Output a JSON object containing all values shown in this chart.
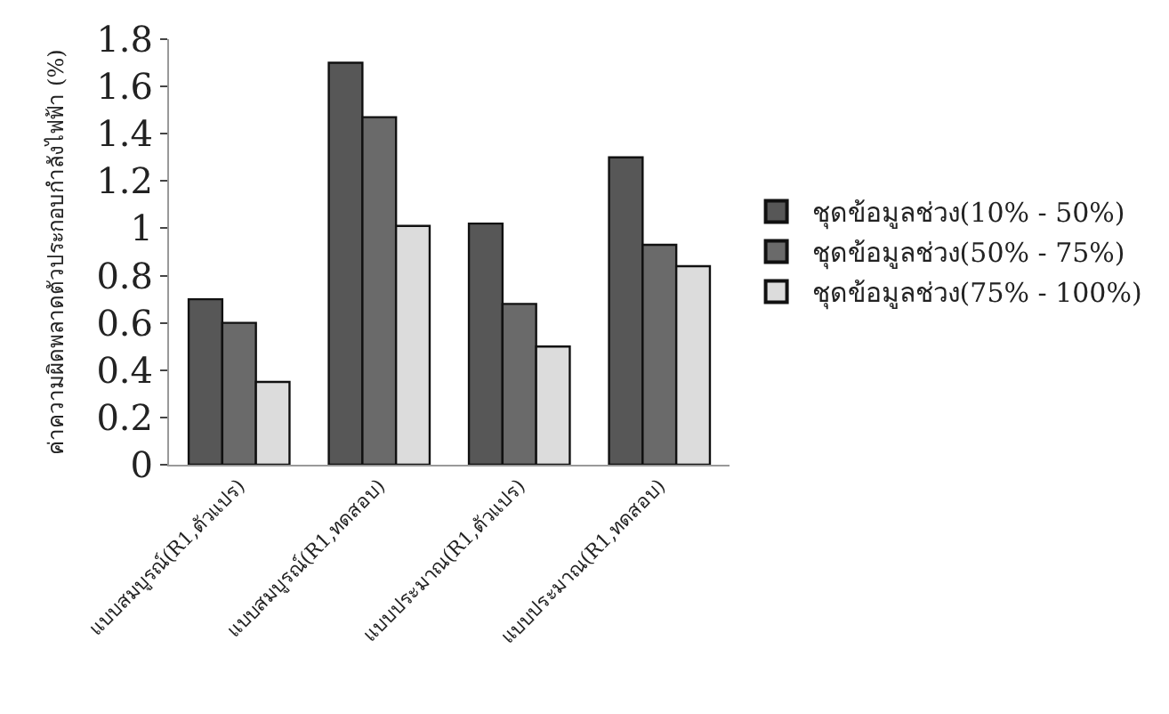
{
  "chart_data": {
    "type": "bar",
    "ylabel": "ค่าความผิดพลาดตัวประกอบกำลังไฟฟ้า (%)",
    "categories": [
      "แบบสมบูรณ์(R1,ตัวแปร)",
      "แบบสมบูรณ์(R1,ทดสอบ)",
      "แบบประมาณ(R1,ตัวแปร)",
      "แบบประมาณ(R1,ทดสอบ)"
    ],
    "series": [
      {
        "name": "ชุดข้อมูลช่วง(10% - 50%)",
        "color": "#575757",
        "values": [
          0.7,
          1.7,
          1.02,
          1.3
        ]
      },
      {
        "name": "ชุดข้อมูลช่วง(50% - 75%)",
        "color": "#6a6a6a",
        "values": [
          0.6,
          1.47,
          0.68,
          0.93
        ]
      },
      {
        "name": "ชุดข้อมูลช่วง(75% - 100%)",
        "color": "#dcdcdc",
        "values": [
          0.35,
          1.01,
          0.5,
          0.84
        ]
      }
    ],
    "ylim": [
      0,
      1.8
    ],
    "yticks": [
      0,
      0.2,
      0.4,
      0.6,
      0.8,
      1,
      1.2,
      1.4,
      1.6,
      1.8
    ],
    "legend": "right"
  }
}
